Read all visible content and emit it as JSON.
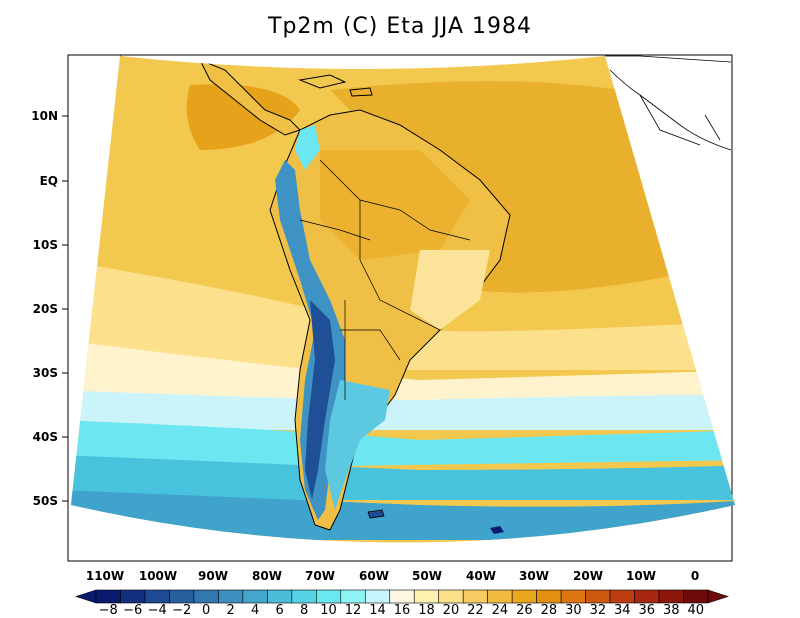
{
  "title": "Tp2m (C) Eta JJA 1984",
  "lat_labels": [
    "10N",
    "EQ",
    "10S",
    "20S",
    "30S",
    "40S",
    "50S"
  ],
  "lon_labels": [
    "110W",
    "100W",
    "90W",
    "80W",
    "70W",
    "60W",
    "50W",
    "40W",
    "30W",
    "20W",
    "10W",
    "0"
  ],
  "colorbar": {
    "labels": [
      "−8",
      "−6",
      "−4",
      "−2",
      "0",
      "2",
      "4",
      "6",
      "8",
      "10",
      "12",
      "14",
      "16",
      "18",
      "20",
      "22",
      "24",
      "26",
      "28",
      "30",
      "32",
      "34",
      "36",
      "38",
      "40"
    ],
    "colors": [
      "#0a1a6e",
      "#11317f",
      "#1c4a93",
      "#27609f",
      "#3277b0",
      "#3d8fbf",
      "#45a6cd",
      "#4bbdd9",
      "#55d3e4",
      "#6ae8ef",
      "#8ff4f6",
      "#c8f4fb",
      "#fdf6e4",
      "#fff2b0",
      "#fde089",
      "#f7cd63",
      "#f0bb3e",
      "#eaa61d",
      "#e38f10",
      "#dc7512",
      "#cf5811",
      "#bc3d10",
      "#a8270f",
      "#8e170d",
      "#6e0a0a"
    ]
  },
  "colors": {
    "ocean_north": "#f1c54d",
    "ocean_warm": "#e7ab2a",
    "land_outline": "#000000"
  }
}
